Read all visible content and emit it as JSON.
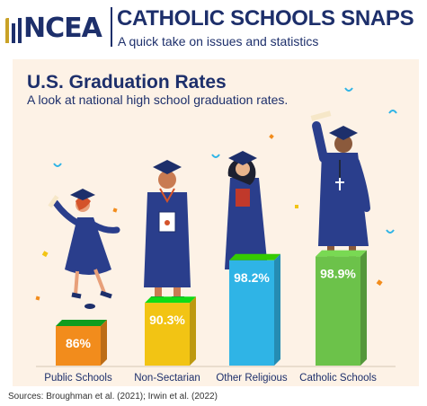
{
  "header": {
    "logo_text": "NCEA",
    "title": "CATHOLIC SCHOOLS SNAPS",
    "subtitle": "A quick take on issues and statistics"
  },
  "sources": "Sources: Broughman et al. (2021); Irwin et al. (2022)",
  "colors": {
    "navy": "#1d2f6b",
    "panel": "#fdf2e6",
    "public": "#f28c1c",
    "nonsectarian": "#f2c414",
    "other_religious": "#2fb4e6",
    "catholic": "#6cc24a"
  },
  "chart_data": {
    "type": "bar",
    "title": "U.S. Graduation Rates",
    "subtitle": "A look at national high school graduation rates.",
    "categories": [
      "Public Schools",
      "Non-Sectarian",
      "Other Religious",
      "Catholic Schools"
    ],
    "values": [
      86,
      90.3,
      98.2,
      98.9
    ],
    "value_labels": [
      "86%",
      "90.3%",
      "98.2%",
      "98.9%"
    ],
    "unit": "%",
    "bar_colors": [
      "#f28c1c",
      "#f2c414",
      "#2fb4e6",
      "#6cc24a"
    ],
    "xlabel": "",
    "ylabel": ""
  }
}
